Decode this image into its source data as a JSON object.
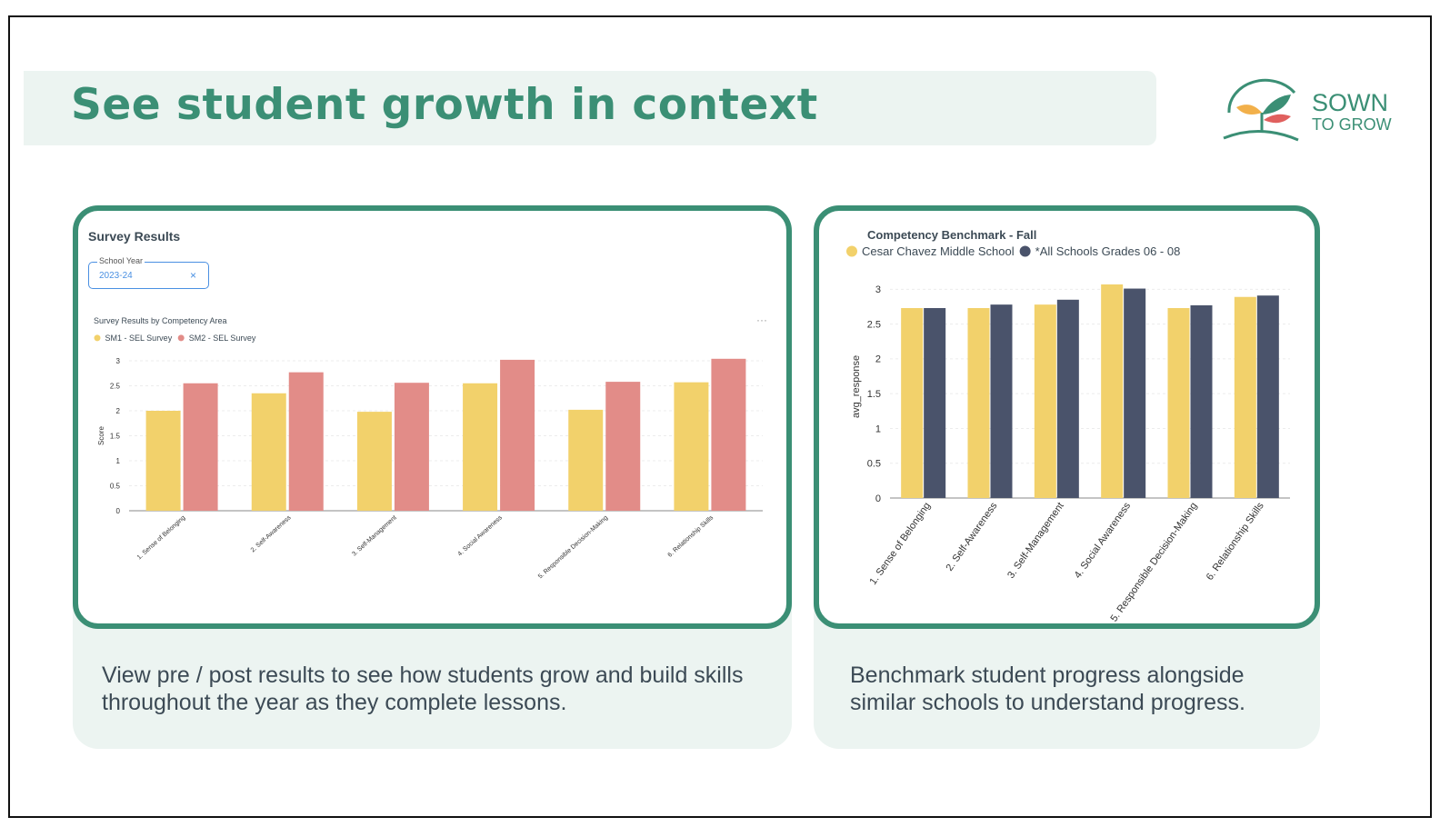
{
  "slide": {
    "title": "See student growth in context",
    "logo": {
      "line1": "SOWN",
      "line2": "TO GROW",
      "icon": "sprout-leaves-icon"
    },
    "colors": {
      "brand": "#3b8f75",
      "band": "#ecf4f1"
    }
  },
  "left_panel": {
    "title": "Survey Results",
    "filter": {
      "label": "School Year",
      "value": "2023-24",
      "clear_icon": "close-icon"
    },
    "chart_title": "Survey Results by Competency Area",
    "menu_icon": "more-icon",
    "caption": "View pre / post results to see how students grow and build skills throughout the year as they complete lessons."
  },
  "right_panel": {
    "title": "Competency Benchmark - Fall",
    "caption": "Benchmark student progress alongside similar schools to understand progress."
  },
  "chart_data": [
    {
      "type": "bar",
      "title": "Survey Results by Competency Area",
      "xlabel": "",
      "ylabel": "Score",
      "ylim": [
        0,
        3
      ],
      "yticks": [
        "0",
        "0.5",
        "1",
        "1.5",
        "2",
        "2.5",
        "3"
      ],
      "categories": [
        "1. Sense of Belonging",
        "2. Self-Awareness",
        "3. Self-Management",
        "4. Social Awareness",
        "5. Responsible Decision-Making",
        "6. Relationship Skills"
      ],
      "series": [
        {
          "name": "SM1 - SEL Survey",
          "color": "#f2d16b",
          "values": [
            2.0,
            2.35,
            1.98,
            2.55,
            2.02,
            2.57
          ]
        },
        {
          "name": "SM2 - SEL Survey",
          "color": "#e28c88",
          "values": [
            2.55,
            2.77,
            2.56,
            3.02,
            2.58,
            3.04
          ]
        }
      ],
      "grid": true,
      "legend": "top-left"
    },
    {
      "type": "bar",
      "title": "",
      "xlabel": "",
      "ylabel": "avg_response",
      "ylim": [
        0,
        3.2
      ],
      "yticks": [
        "0",
        "0.5",
        "1",
        "1.5",
        "2",
        "2.5",
        "3"
      ],
      "categories": [
        "1. Sense of Belonging",
        "2. Self-Awareness",
        "3. Self-Management",
        "4. Social Awareness",
        "5. Responsible Decision-Making",
        "6. Relationship Skills"
      ],
      "series": [
        {
          "name": "Cesar Chavez Middle School",
          "color": "#f2d16b",
          "values": [
            2.73,
            2.73,
            2.78,
            3.07,
            2.73,
            2.89
          ]
        },
        {
          "name": "*All Schools Grades 06 - 08",
          "color": "#4a536b",
          "values": [
            2.73,
            2.78,
            2.85,
            3.01,
            2.77,
            2.91
          ]
        }
      ],
      "grid": true,
      "legend": "top-left"
    }
  ]
}
